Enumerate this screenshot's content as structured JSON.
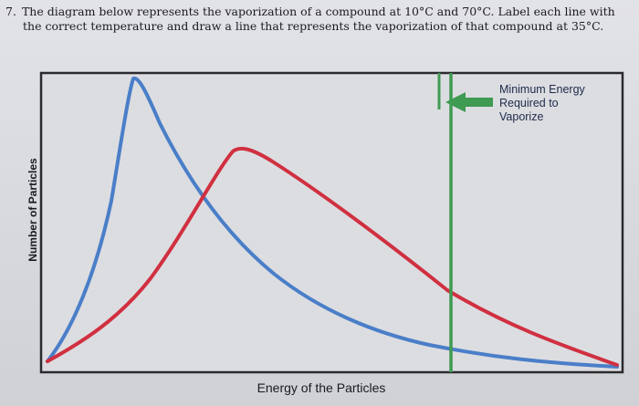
{
  "question": {
    "number": "7.",
    "line1": "The diagram below represents the vaporization of a compound at 10°C and 70°C. Label each line with",
    "line2": "the correct temperature and draw a line that represents the vaporization of that compound at 35°C."
  },
  "diagram": {
    "y_axis_label": "Number of Particles",
    "x_axis_label": "Energy of the Particles",
    "threshold_label_lines": [
      "Minimum Energy",
      "Required to",
      "Vaporize"
    ],
    "colors": {
      "frame": "#2a2a2e",
      "blue_curve": "#4a7ec8",
      "red_curve": "#d03040",
      "threshold": "#3f9a52",
      "arrow": "#3f9a52"
    }
  }
}
